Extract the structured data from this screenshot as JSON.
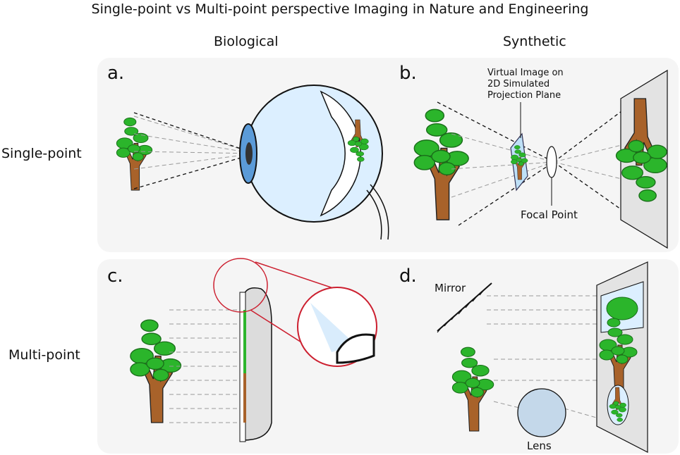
{
  "title": "Single-point vs Multi-point perspective Imaging in Nature and Engineering",
  "columns": {
    "left": "Biological",
    "right": "Synthetic"
  },
  "rows": {
    "top": "Single-point",
    "bottom": "Multi-point"
  },
  "panels": {
    "a": {
      "label": "a."
    },
    "b": {
      "label": "b.",
      "virtual_image_line1": "Virtual Image on",
      "virtual_image_line2": "2D Simulated",
      "virtual_image_line3": "Projection Plane",
      "focal_point": "Focal Point"
    },
    "c": {
      "label": "c."
    },
    "d": {
      "label": "d.",
      "mirror": "Mirror",
      "lens": "Lens"
    }
  },
  "colors": {
    "foliage": "#2bb52b",
    "foliage_dark": "#1f8f1f",
    "trunk": "#a8622a",
    "eye": "#dcefff",
    "iris": "#5b9bd8",
    "retina_red": "#cc1f2f",
    "panel_bg": "#f5f5f5"
  }
}
